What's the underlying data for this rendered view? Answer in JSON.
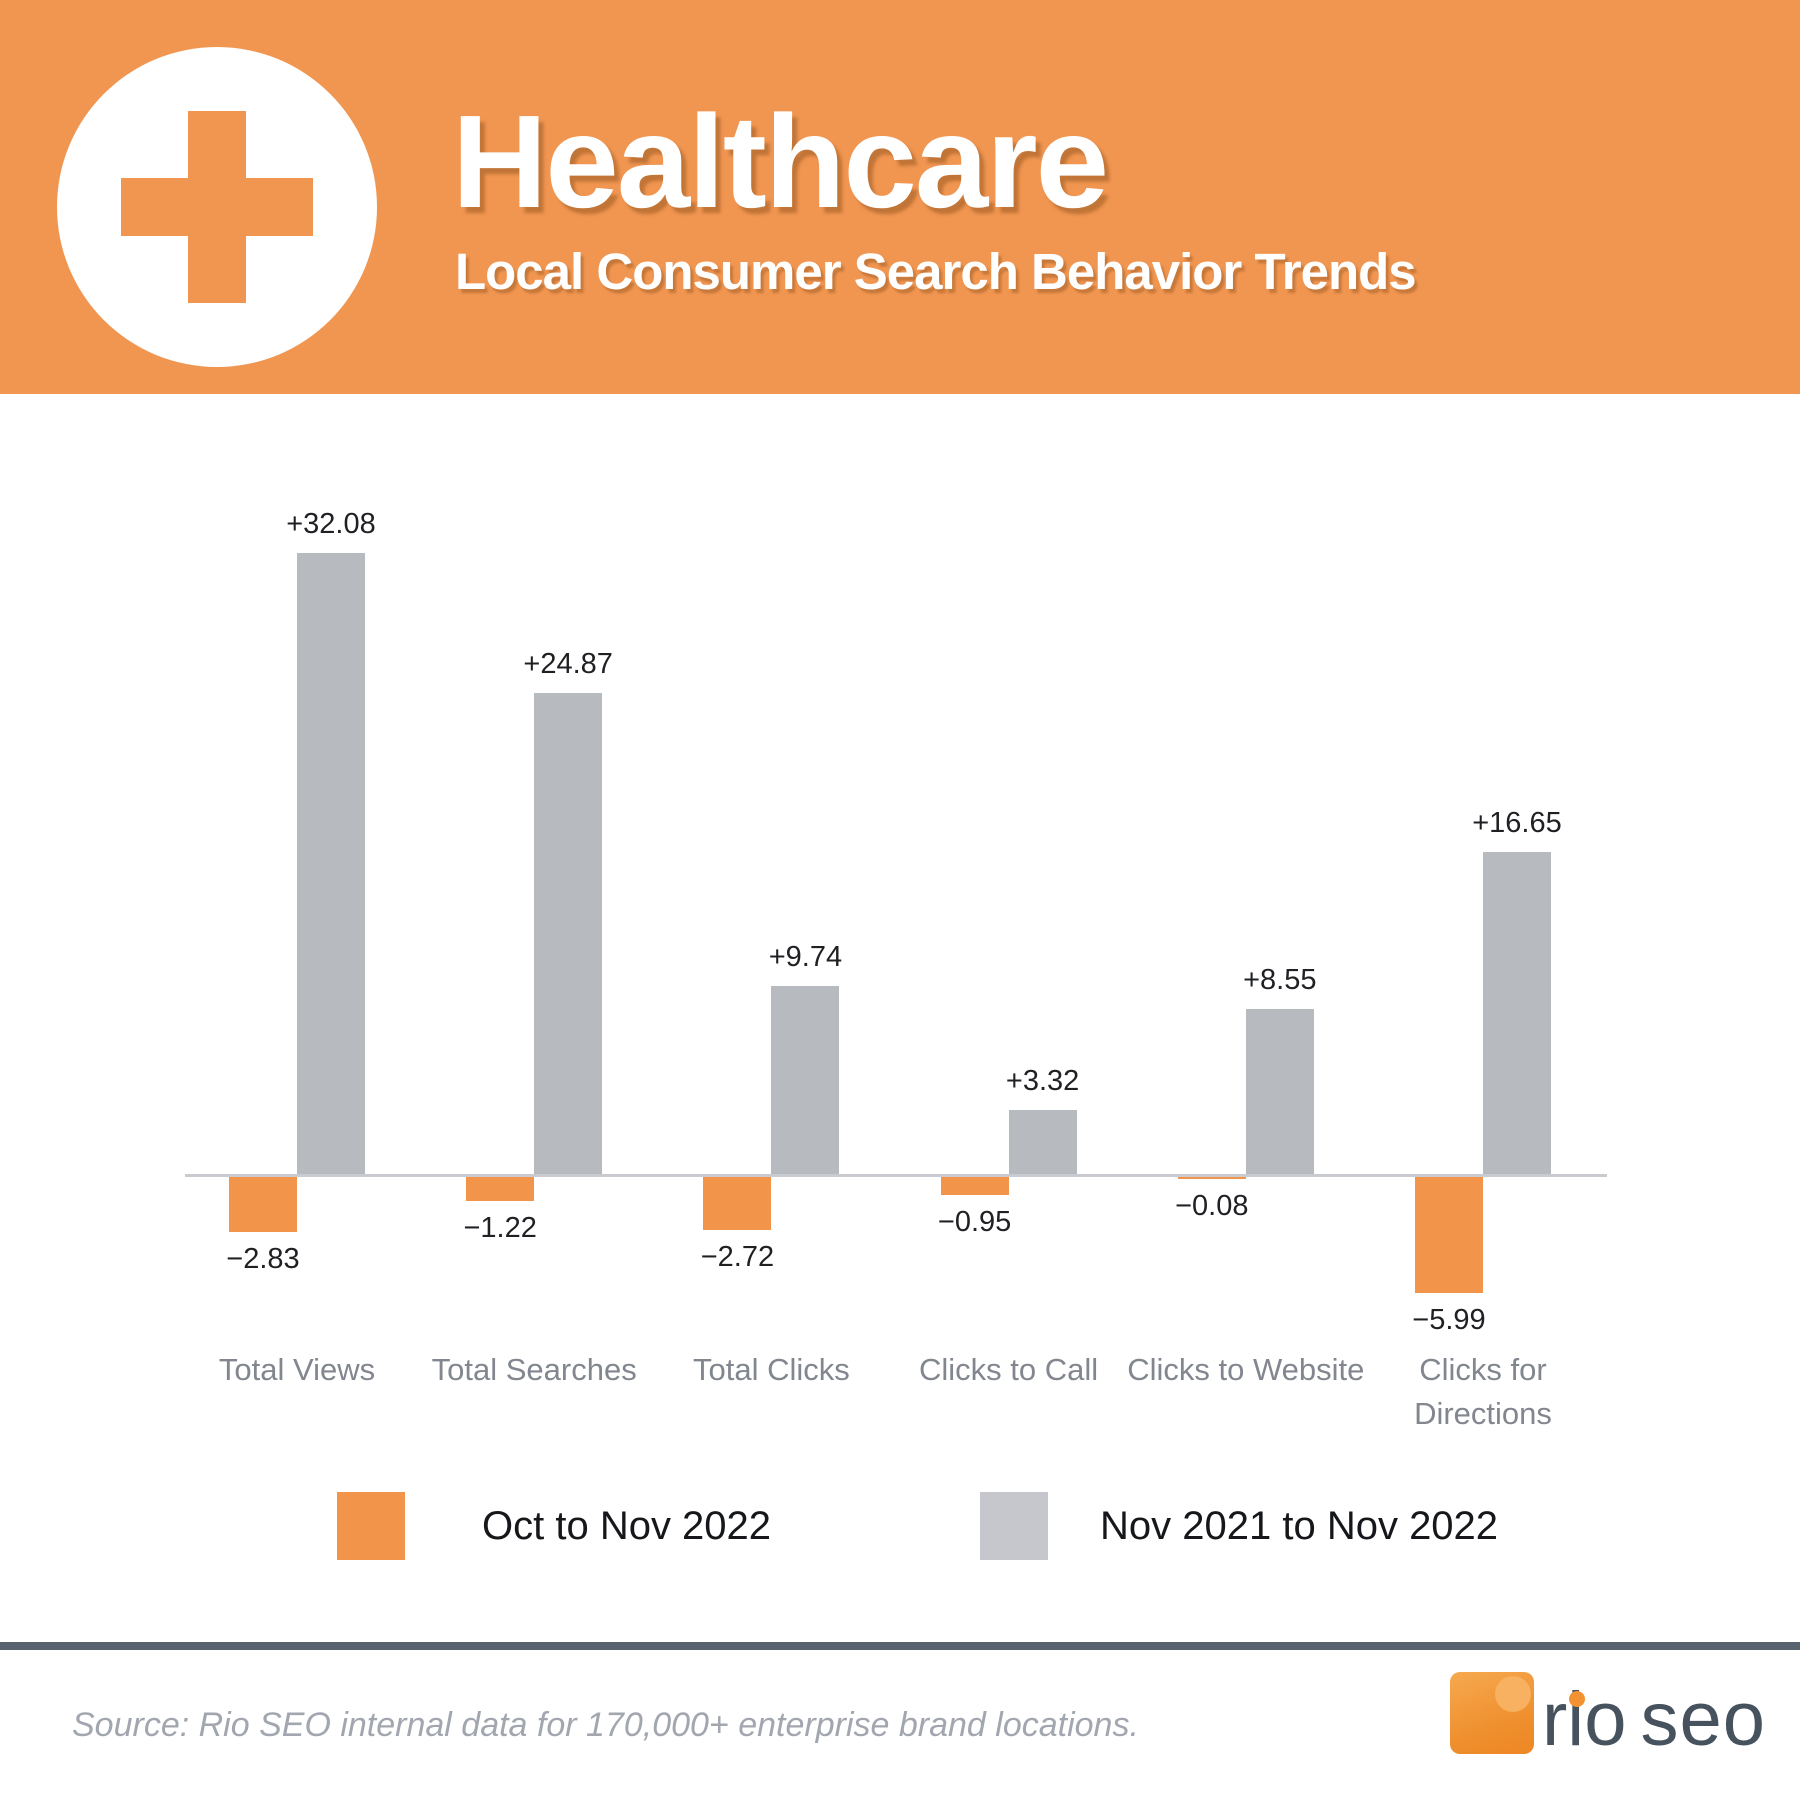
{
  "header": {
    "title": "Healthcare",
    "subtitle": "Local Consumer Search Behavior Trends",
    "icon": "medical-cross-icon",
    "background_color": "#F19651",
    "icon_circle_color": "#FFFFFF",
    "text_color": "#FFFFFF"
  },
  "chart_data": {
    "type": "bar",
    "title": "",
    "xlabel": "",
    "ylabel": "",
    "grid": false,
    "y_axis_visible": false,
    "value_labels_visible": true,
    "legend_position": "bottom",
    "categories": [
      "Total Views",
      "Total Searches",
      "Total Clicks",
      "Clicks to Call",
      "Clicks to Website",
      "Clicks for Directions"
    ],
    "category_lines": [
      [
        "Total Views"
      ],
      [
        "Total Searches"
      ],
      [
        "Total Clicks"
      ],
      [
        "Clicks to Call"
      ],
      [
        "Clicks to Website"
      ],
      [
        "Clicks for",
        "Directions"
      ]
    ],
    "series": [
      {
        "name": "Oct to Nov 2022",
        "color": "#F2954B",
        "values": [
          -2.83,
          -1.22,
          -2.72,
          -0.95,
          -0.08,
          -5.99
        ],
        "labels": [
          "−2.83",
          "−1.22",
          "−2.72",
          "−0.95",
          "−0.08",
          "−5.99"
        ]
      },
      {
        "name": "Nov 2021 to Nov 2022",
        "color": "#B7BABF",
        "values": [
          32.08,
          24.87,
          9.74,
          3.32,
          8.55,
          16.65
        ],
        "labels": [
          "+32.08",
          "+24.87",
          "+9.74",
          "+3.32",
          "+8.55",
          "+16.65"
        ]
      }
    ]
  },
  "legend": {
    "items": [
      {
        "label": "Oct to Nov 2022",
        "color": "#F2954B"
      },
      {
        "label": "Nov 2021 to Nov 2022",
        "color": "#C5C7CC"
      }
    ]
  },
  "footer": {
    "source": "Source: Rio SEO internal data for 170,000+ enterprise brand locations.",
    "divider_color": "#59626F",
    "logo": {
      "rio": "rio",
      "seo": "seo"
    }
  }
}
